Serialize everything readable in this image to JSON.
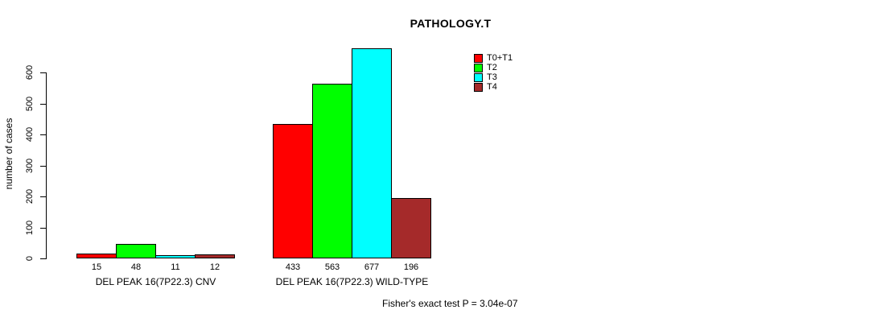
{
  "figure": {
    "background_color": "#FFFFFF",
    "axis_color": "#000000",
    "text_color": "#000000"
  },
  "chart_data": {
    "type": "bar",
    "title": "PATHOLOGY.T",
    "ylabel": "number of cases",
    "xlabel": "",
    "ylim": [
      0,
      600
    ],
    "yticks": [
      0,
      100,
      200,
      300,
      400,
      500,
      600
    ],
    "grid": false,
    "legend_position": "upper-right",
    "categories": [
      "DEL PEAK 16(7P22.3) CNV",
      "DEL PEAK 16(7P22.3) WILD-TYPE"
    ],
    "series": [
      {
        "name": "T0+T1",
        "color": "#FF0000",
        "values": [
          15,
          433
        ]
      },
      {
        "name": "T2",
        "color": "#00FF00",
        "values": [
          48,
          563
        ]
      },
      {
        "name": "T3",
        "color": "#00FFFF",
        "values": [
          11,
          677
        ]
      },
      {
        "name": "T4",
        "color": "#A52A2A",
        "values": [
          12,
          196
        ]
      }
    ],
    "bar_value_labels": [
      [
        15,
        48,
        11,
        12
      ],
      [
        433,
        563,
        677,
        196
      ]
    ],
    "footnote": "Fisher's exact test P = 3.04e-07"
  }
}
